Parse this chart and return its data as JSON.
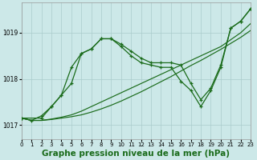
{
  "background_color": "#cce8e8",
  "grid_color": "#aacccc",
  "line_color": "#1a6b1a",
  "xlabel": "Graphe pression niveau de la mer (hPa)",
  "xlabel_fontsize": 7.5,
  "ylim": [
    1016.7,
    1019.65
  ],
  "xlim": [
    0,
    23
  ],
  "yticks": [
    1017,
    1018,
    1019
  ],
  "xticks": [
    0,
    1,
    2,
    3,
    4,
    5,
    6,
    7,
    8,
    9,
    10,
    11,
    12,
    13,
    14,
    15,
    16,
    17,
    18,
    19,
    20,
    21,
    22,
    23
  ],
  "line1_y": [
    1017.15,
    1017.1,
    1017.1,
    1017.13,
    1017.17,
    1017.22,
    1017.3,
    1017.4,
    1017.5,
    1017.6,
    1017.7,
    1017.8,
    1017.9,
    1018.0,
    1018.1,
    1018.2,
    1018.3,
    1018.4,
    1018.5,
    1018.6,
    1018.7,
    1018.85,
    1019.0,
    1019.2
  ],
  "line2_y": [
    1017.15,
    1017.1,
    1017.1,
    1017.12,
    1017.15,
    1017.18,
    1017.22,
    1017.28,
    1017.35,
    1017.43,
    1017.52,
    1017.62,
    1017.72,
    1017.83,
    1017.94,
    1018.05,
    1018.17,
    1018.29,
    1018.4,
    1018.52,
    1018.64,
    1018.77,
    1018.9,
    1019.05
  ],
  "line3_x": [
    0,
    1,
    2,
    3,
    4,
    5,
    6,
    7,
    8,
    9,
    10,
    11,
    12,
    13,
    14,
    15,
    16,
    17,
    18,
    19,
    20,
    21,
    22,
    23
  ],
  "line3_y": [
    1017.15,
    1017.1,
    1017.2,
    1017.4,
    1017.65,
    1018.25,
    1018.55,
    1018.65,
    1018.87,
    1018.87,
    1018.75,
    1018.6,
    1018.45,
    1018.35,
    1018.35,
    1018.35,
    1018.3,
    1017.9,
    1017.55,
    1017.8,
    1018.3,
    1019.1,
    1019.25,
    1019.52
  ],
  "line4_x": [
    0,
    2,
    3,
    4,
    5,
    6,
    7,
    8,
    9,
    10,
    11,
    12,
    13,
    14,
    15,
    16,
    17,
    18,
    19,
    20,
    21,
    22,
    23
  ],
  "line4_y": [
    1017.15,
    1017.15,
    1017.4,
    1017.65,
    1017.9,
    1018.55,
    1018.65,
    1018.87,
    1018.87,
    1018.7,
    1018.5,
    1018.35,
    1018.3,
    1018.25,
    1018.25,
    1017.95,
    1017.75,
    1017.4,
    1017.75,
    1018.25,
    1019.1,
    1019.25,
    1019.52
  ]
}
